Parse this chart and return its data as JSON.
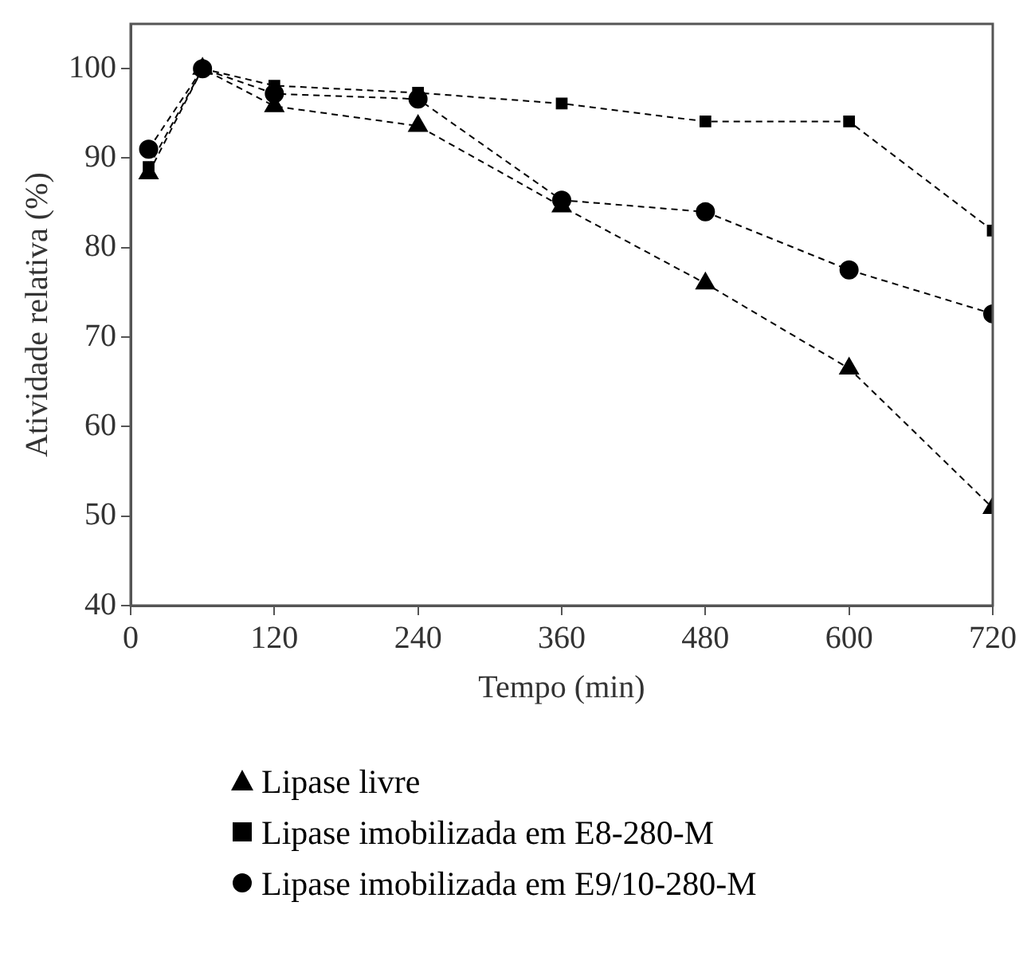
{
  "chart_data": {
    "type": "line",
    "xlabel": "Tempo (min)",
    "ylabel": "Atividade relativa (%)",
    "x": [
      15,
      60,
      120,
      240,
      360,
      480,
      600,
      720
    ],
    "xlim": [
      0,
      720
    ],
    "xticks": [
      0,
      120,
      240,
      360,
      480,
      600,
      720
    ],
    "ylim": [
      40,
      105
    ],
    "yticks": [
      40,
      50,
      60,
      70,
      80,
      90,
      100
    ],
    "grid": false,
    "legend": "bottom",
    "line_style": "dashed",
    "series": [
      {
        "name": "Lipase livre",
        "color": "#000000",
        "marker": "triangle",
        "values": [
          88.3,
          100,
          95.8,
          93.6,
          84.6,
          76,
          66.5,
          50.9
        ]
      },
      {
        "name": "Lipase imobilizada em E8-280-M",
        "color": "#000000",
        "marker": "square",
        "values": [
          89,
          100,
          98.1,
          97.3,
          96.1,
          94.1,
          94.1,
          81.9
        ]
      },
      {
        "name": "Lipase imobilizada em E9/10-280-M",
        "color": "#000000",
        "marker": "circle",
        "values": [
          91,
          100,
          97.2,
          96.6,
          85.3,
          84,
          77.5,
          72.6
        ]
      }
    ]
  }
}
